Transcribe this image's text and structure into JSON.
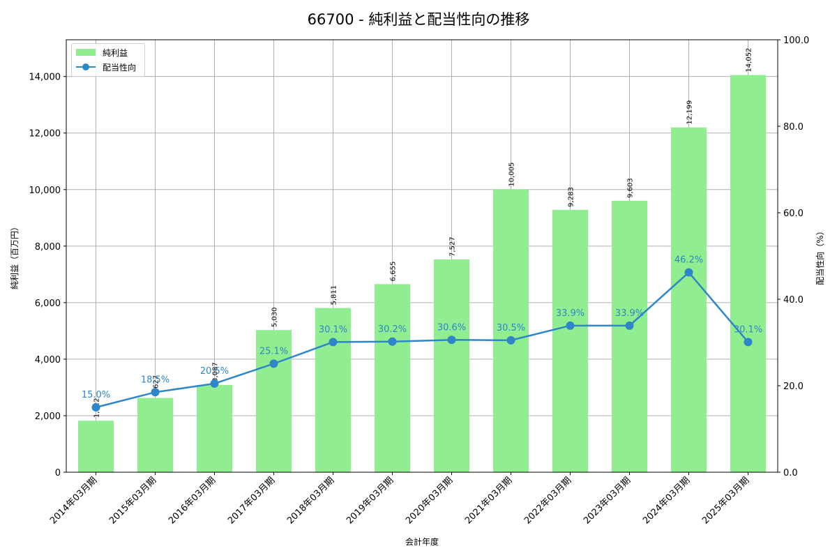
{
  "chart_data": {
    "type": "bar+line",
    "title": "66700 - 純利益と配当性向の推移",
    "xlabel": "会計年度",
    "ylabel": "純利益（百万円）",
    "y2label": "配当性向（%）",
    "categories": [
      "2014年03月期",
      "2015年03月期",
      "2016年03月期",
      "2017年03月期",
      "2018年03月期",
      "2019年03月期",
      "2020年03月期",
      "2021年03月期",
      "2022年03月期",
      "2023年03月期",
      "2024年03月期",
      "2025年03月期"
    ],
    "series": [
      {
        "name": "純利益",
        "type": "bar",
        "axis": "left",
        "color": "#90ee90",
        "values": [
          1822,
          2627,
          3087,
          5030,
          5811,
          6655,
          7527,
          10005,
          9283,
          9603,
          12199,
          14052
        ],
        "labels": [
          "1,822",
          "2,627",
          "3,087",
          "5,030",
          "5,811",
          "6,655",
          "7,527",
          "10,005",
          "9,283",
          "9,603",
          "12,199",
          "14,052"
        ]
      },
      {
        "name": "配当性向",
        "type": "line",
        "axis": "right",
        "color": "#2e86c8",
        "values": [
          15.0,
          18.5,
          20.5,
          25.1,
          30.1,
          30.2,
          30.6,
          30.5,
          33.9,
          33.9,
          46.2,
          30.1
        ],
        "labels": [
          "15.0%",
          "18.5%",
          "20.5%",
          "25.1%",
          "30.1%",
          "30.2%",
          "30.6%",
          "30.5%",
          "33.9%",
          "33.9%",
          "46.2%",
          "30.1%"
        ]
      }
    ],
    "ylim": [
      0,
      15300
    ],
    "y2lim": [
      0,
      100
    ],
    "yticks": [
      "0",
      "2,000",
      "4,000",
      "6,000",
      "8,000",
      "10,000",
      "12,000",
      "14,000"
    ],
    "yticks_values": [
      0,
      2000,
      4000,
      6000,
      8000,
      10000,
      12000,
      14000
    ],
    "y2ticks": [
      "0.0",
      "20.0",
      "40.0",
      "60.0",
      "80.0",
      "100.0"
    ],
    "y2ticks_values": [
      0,
      20,
      40,
      60,
      80,
      100
    ],
    "grid": true,
    "legend_position": "upper left"
  },
  "legend": {
    "bar_label": "純利益",
    "line_label": "配当性向"
  }
}
